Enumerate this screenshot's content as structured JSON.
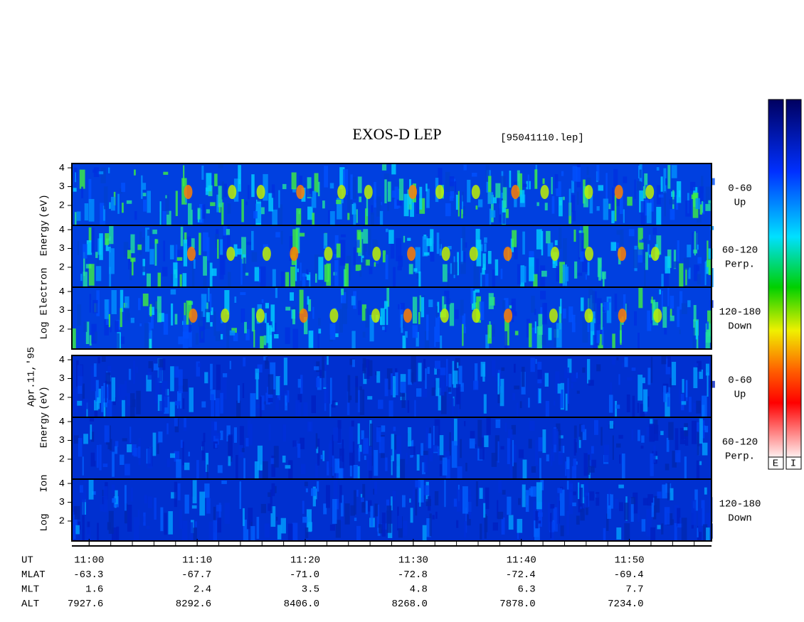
{
  "chart_data": {
    "type": "spectrogram",
    "title": "EXOS-D LEP",
    "file_label": "[95041110.lep]",
    "date_label": "Apr.11,'95",
    "xlim": [
      -1.6,
      57.6
    ],
    "xticks": [
      {
        "value": 0,
        "label": "11:00"
      },
      {
        "value": 10,
        "label": "11:10"
      },
      {
        "value": 20,
        "label": "11:20"
      },
      {
        "value": 30,
        "label": "11:30"
      },
      {
        "value": 40,
        "label": "11:40"
      },
      {
        "value": 50,
        "label": "11:50"
      }
    ],
    "ylim": [
      0.94,
      4.23
    ],
    "yticks": [
      2,
      3,
      4
    ],
    "groups": [
      {
        "ylabel_words": [
          "Log",
          "Electron",
          "Energy",
          "(eV)"
        ],
        "species": "E",
        "panels": [
          {
            "label": [
              "0-60",
              "Up"
            ]
          },
          {
            "label": [
              "60-120",
              "Perp."
            ]
          },
          {
            "label": [
              "120-180",
              "Down"
            ]
          }
        ]
      },
      {
        "ylabel_words": [
          "Log",
          "Ion",
          "Energy",
          "(eV)"
        ],
        "species": "I",
        "panels": [
          {
            "label": [
              "0-60",
              "Up"
            ]
          },
          {
            "label": [
              "60-120",
              "Perp."
            ]
          },
          {
            "label": [
              "120-180",
              "Down"
            ]
          }
        ]
      }
    ],
    "ephemeris": [
      {
        "name": "UT",
        "values": []
      },
      {
        "name": "MLAT",
        "values": [
          "-63.3",
          "-67.7",
          "-71.0",
          "-72.8",
          "-72.4",
          "-69.4"
        ]
      },
      {
        "name": "MLT",
        "values": [
          "1.6",
          "2.4",
          "3.5",
          "4.8",
          "6.3",
          "7.7"
        ]
      },
      {
        "name": "ALT",
        "values": [
          "7927.6",
          "8292.6",
          "8406.0",
          "8268.0",
          "7878.0",
          "7234.0"
        ]
      }
    ],
    "colorbar_labels": [
      "E",
      "I"
    ]
  }
}
